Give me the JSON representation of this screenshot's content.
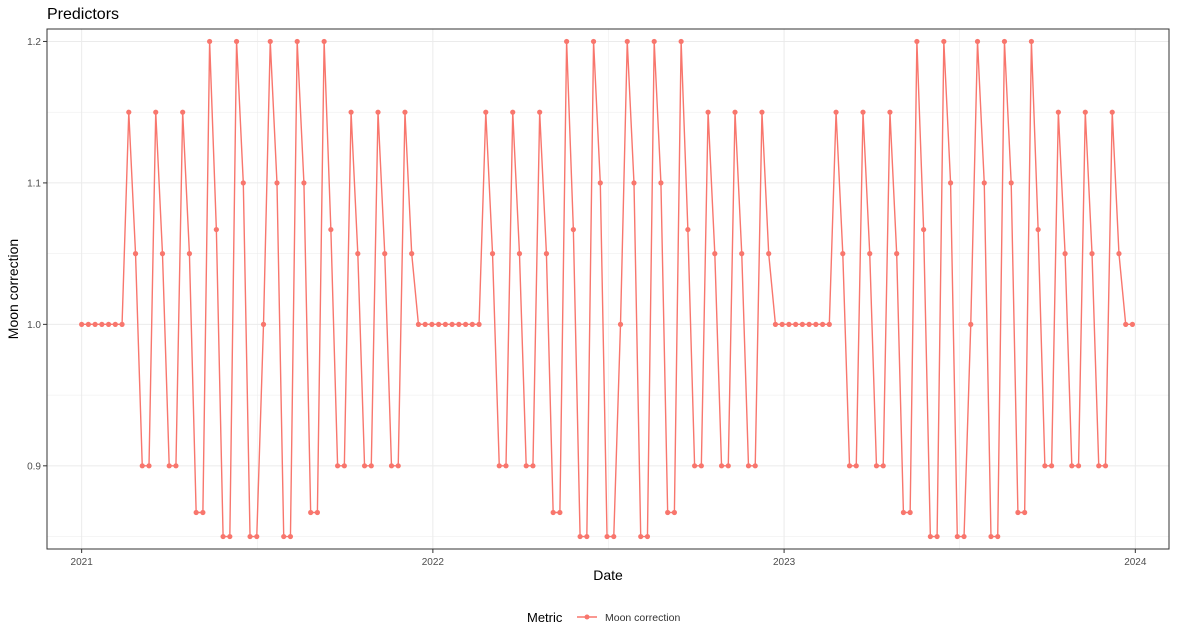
{
  "chart_data": {
    "type": "line",
    "title": "Predictors",
    "xlabel": "Date",
    "ylabel": "Moon correction",
    "x_start": "2021-01-01",
    "x_step_days": 7,
    "series": [
      {
        "name": "Moon correction",
        "color": "#F8766D",
        "values": [
          1.0,
          1.0,
          1.0,
          1.0,
          1.0,
          1.0,
          1.0,
          1.15,
          1.05,
          0.9,
          0.9,
          1.15,
          1.05,
          0.9,
          0.9,
          1.15,
          1.05,
          0.867,
          0.867,
          1.2,
          1.067,
          0.85,
          0.85,
          1.2,
          1.1,
          0.85,
          0.85,
          1.0,
          1.2,
          1.1,
          0.85,
          0.85,
          1.2,
          1.1,
          0.867,
          0.867,
          1.2,
          1.067,
          0.9,
          0.9,
          1.15,
          1.05,
          0.9,
          0.9,
          1.15,
          1.05,
          0.9,
          0.9,
          1.15,
          1.05,
          1.0,
          1.0,
          1.0,
          1.0,
          1.0,
          1.0,
          1.0,
          1.0,
          1.0,
          1.0,
          1.15,
          1.05,
          0.9,
          0.9,
          1.15,
          1.05,
          0.9,
          0.9,
          1.15,
          1.05,
          0.867,
          0.867,
          1.2,
          1.067,
          0.85,
          0.85,
          1.2,
          1.1,
          0.85,
          0.85,
          1.0,
          1.2,
          1.1,
          0.85,
          0.85,
          1.2,
          1.1,
          0.867,
          0.867,
          1.2,
          1.067,
          0.9,
          0.9,
          1.15,
          1.05,
          0.9,
          0.9,
          1.15,
          1.05,
          0.9,
          0.9,
          1.15,
          1.05,
          1.0,
          1.0,
          1.0,
          1.0,
          1.0,
          1.0,
          1.0,
          1.0,
          1.0,
          1.15,
          1.05,
          0.9,
          0.9,
          1.15,
          1.05,
          0.9,
          0.9,
          1.15,
          1.05,
          0.867,
          0.867,
          1.2,
          1.067,
          0.85,
          0.85,
          1.2,
          1.1,
          0.85,
          0.85,
          1.0,
          1.2,
          1.1,
          0.85,
          0.85,
          1.2,
          1.1,
          0.867,
          0.867,
          1.2,
          1.067,
          0.9,
          0.9,
          1.15,
          1.05,
          0.9,
          0.9,
          1.15,
          1.05,
          0.9,
          0.9,
          1.15,
          1.05,
          1.0,
          1.0
        ]
      }
    ],
    "x_ticks": [
      {
        "label": "2021",
        "date": "2021-01-01"
      },
      {
        "label": "2022",
        "date": "2022-01-01"
      },
      {
        "label": "2023",
        "date": "2023-01-01"
      },
      {
        "label": "2024",
        "date": "2024-01-01"
      }
    ],
    "y_ticks": [
      "0.9",
      "1.0",
      "1.1",
      "1.2"
    ],
    "ylim": [
      0.8412,
      1.2088
    ],
    "xlim": [
      "2020-11-26",
      "2024-02-05"
    ],
    "grid": true,
    "legend": {
      "title": "Metric",
      "position": "bottom",
      "entries": [
        "Moon correction"
      ]
    }
  }
}
